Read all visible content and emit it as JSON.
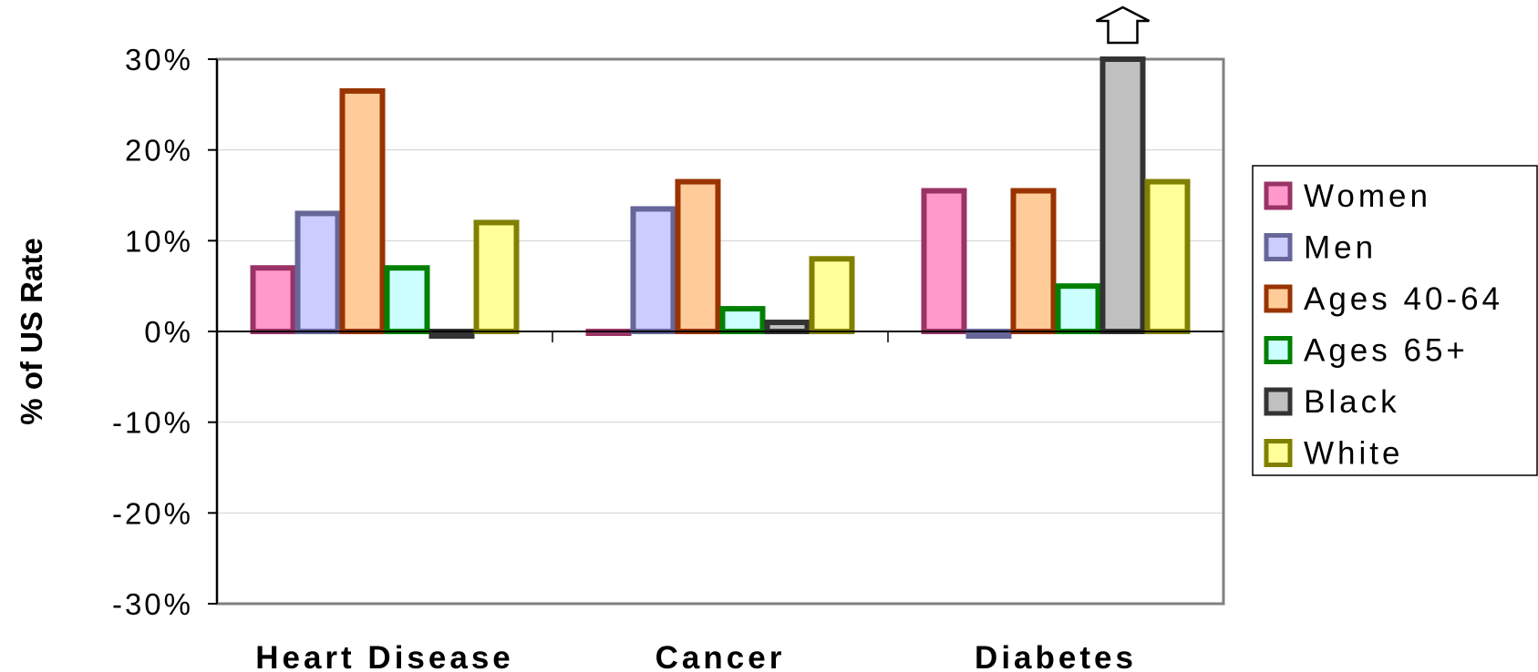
{
  "chart_data": {
    "type": "bar",
    "title": "",
    "xlabel": "",
    "ylabel": "% of US Rate",
    "categories": [
      "Heart Disease",
      "Cancer",
      "Diabetes"
    ],
    "series": [
      {
        "name": "Women",
        "values": [
          7,
          0,
          15.5
        ],
        "fill": "#ff99cc",
        "stroke": "#993366"
      },
      {
        "name": "Men",
        "values": [
          13,
          13.5,
          -0.5
        ],
        "fill": "#ccccff",
        "stroke": "#666699"
      },
      {
        "name": "Ages 40-64",
        "values": [
          26.5,
          16.5,
          15.5
        ],
        "fill": "#ffcc99",
        "stroke": "#993300"
      },
      {
        "name": "Ages 65+",
        "values": [
          7,
          2.5,
          5
        ],
        "fill": "#ccffff",
        "stroke": "#008000"
      },
      {
        "name": "Black",
        "values": [
          -0.5,
          1,
          30
        ],
        "fill": "#c0c0c0",
        "stroke": "#333333"
      },
      {
        "name": "White",
        "values": [
          12,
          8,
          16.5
        ],
        "fill": "#ffff99",
        "stroke": "#808000"
      }
    ],
    "overflow_marker": {
      "category": "Diabetes",
      "series": "Black",
      "icon": "up-arrow-icon"
    },
    "ylim": [
      -30,
      30
    ],
    "yticks": [
      30,
      20,
      10,
      0,
      -10,
      -20,
      -30
    ],
    "ytick_labels": [
      "30%",
      "20%",
      "10%",
      "0%",
      "-10%",
      "-20%",
      "-30%"
    ],
    "grid": true,
    "legend_position": "right"
  }
}
